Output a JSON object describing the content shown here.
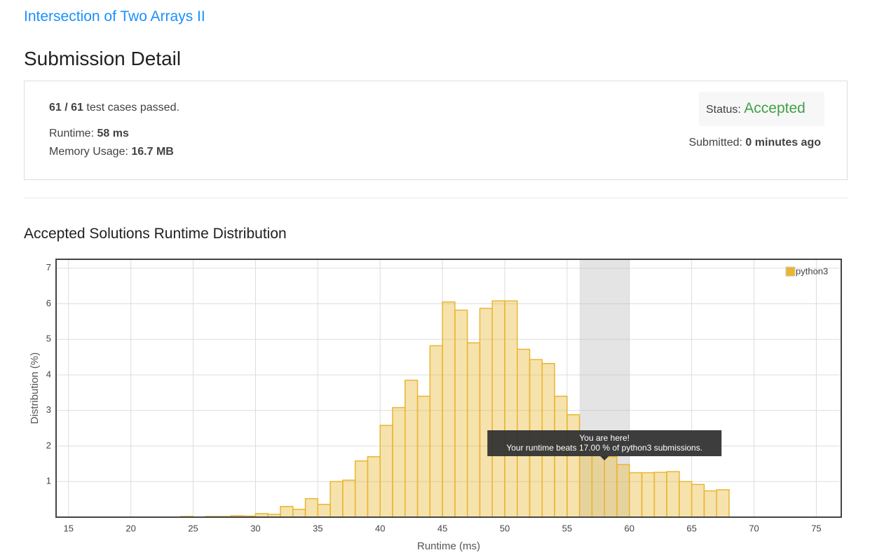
{
  "header": {
    "problem_title": "Intersection of Two Arrays II",
    "page_title": "Submission Detail"
  },
  "summary": {
    "passed": "61 / 61",
    "passed_text": "test cases passed.",
    "runtime_label": "Runtime:",
    "runtime": "58 ms",
    "memory_label": "Memory Usage:",
    "memory": "16.7 MB",
    "status_label": "Status:",
    "status": "Accepted",
    "submitted_label": "Submitted:",
    "submitted": "0 minutes ago"
  },
  "chart_data": {
    "type": "histogram",
    "title": "Accepted Solutions Runtime Distribution",
    "x_label": "Runtime (ms)",
    "y_label": "Distribution (%)",
    "bins": [
      24,
      25,
      26,
      27,
      28,
      29,
      30,
      31,
      32,
      33,
      34,
      35,
      36,
      37,
      38,
      39,
      40,
      41,
      42,
      43,
      44,
      45,
      46,
      47,
      48,
      49,
      50,
      51,
      52,
      53,
      54,
      55,
      56,
      57,
      58,
      59,
      60,
      61,
      62,
      63,
      64,
      65,
      66,
      67,
      68
    ],
    "series": [
      {
        "name": "python3",
        "color": "#e9b631",
        "values": [
          0.02,
          0,
          0.02,
          0.02,
          0.04,
          0.03,
          0.1,
          0.08,
          0.3,
          0.22,
          0.52,
          0.36,
          1.0,
          1.04,
          1.58,
          1.7,
          2.58,
          3.08,
          3.85,
          3.4,
          4.82,
          6.05,
          5.82,
          4.9,
          5.87,
          6.08,
          6.08,
          4.72,
          4.43,
          4.32,
          3.4,
          2.88,
          2.05,
          1.85,
          1.7,
          1.48,
          1.25,
          1.25,
          1.26,
          1.28,
          1.0,
          0.92,
          0.74,
          0.77
        ]
      }
    ],
    "xlim": [
      14,
      77
    ],
    "ylim": [
      0,
      7.25
    ],
    "xticks": [
      15,
      20,
      25,
      30,
      35,
      40,
      45,
      50,
      55,
      60,
      65,
      70,
      75
    ],
    "yticks": [
      1,
      2,
      3,
      4,
      5,
      6,
      7
    ],
    "grid": true,
    "legend": "upper right",
    "highlight_range": [
      56,
      60
    ],
    "tooltip": {
      "title": "You are here!",
      "text": "Your runtime beats 17.00 % of python3 submissions."
    }
  }
}
